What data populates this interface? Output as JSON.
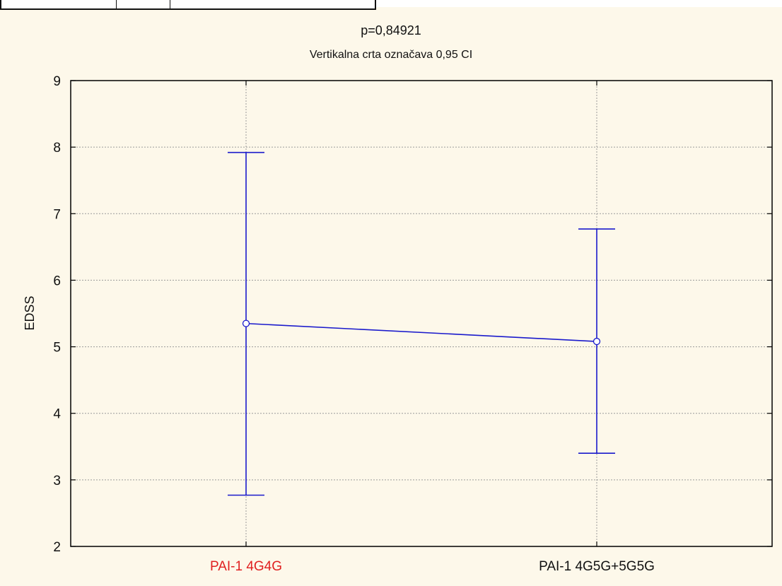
{
  "chart_data": {
    "type": "line",
    "title": "p=0,84921",
    "subtitle": "Vertikalna crta označava 0,95 CI",
    "xlabel": "",
    "ylabel": "EDSS",
    "ylim": [
      2,
      9
    ],
    "yticks": [
      "2",
      "3",
      "4",
      "5",
      "6",
      "7",
      "8",
      "9"
    ],
    "grid": true,
    "categories": [
      "PAI-1 4G4G",
      "PAI-1 4G5G+5G5G"
    ],
    "category_colors": [
      "#e02020",
      "#111111"
    ],
    "series": [
      {
        "values": [
          5.35,
          5.08
        ],
        "ci_lower": [
          2.77,
          3.4
        ],
        "ci_upper": [
          7.92,
          6.77
        ],
        "color": "#1a1acc"
      }
    ]
  }
}
